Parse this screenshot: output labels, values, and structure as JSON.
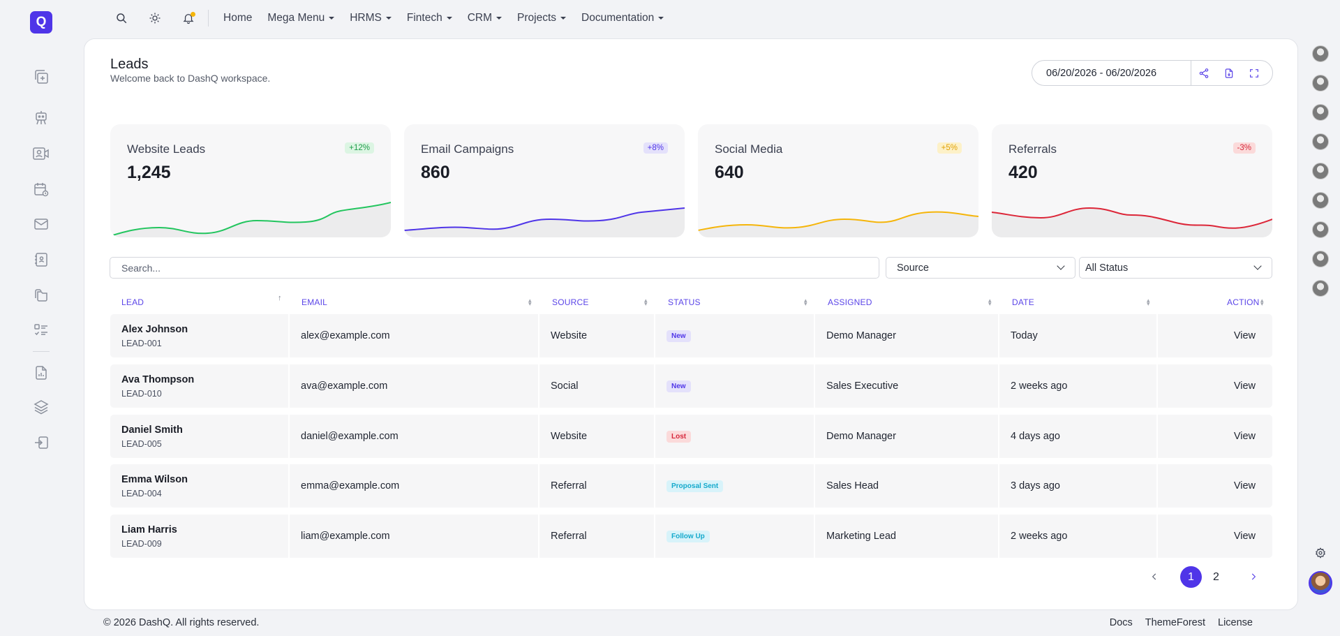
{
  "brand": {
    "logo_letter": "Q"
  },
  "sidebar": {
    "icons": [
      "copy-plus-icon",
      "robot-icon",
      "video-contact-icon",
      "calendar-clock-icon",
      "mail-icon",
      "contact-book-icon",
      "folders-icon",
      "list-check-icon",
      "document-chart-icon",
      "layers-icon",
      "logout-icon"
    ]
  },
  "topnav": {
    "items": [
      {
        "label": "Home",
        "dropdown": false
      },
      {
        "label": "Mega Menu",
        "dropdown": true
      },
      {
        "label": "HRMS",
        "dropdown": true
      },
      {
        "label": "Fintech",
        "dropdown": true
      },
      {
        "label": "CRM",
        "dropdown": true
      },
      {
        "label": "Projects",
        "dropdown": true
      },
      {
        "label": "Documentation",
        "dropdown": true
      }
    ]
  },
  "header": {
    "title": "Leads",
    "subtitle": "Welcome back to DashQ workspace.",
    "date_range": "06/20/2026 - 06/20/2026"
  },
  "stats": [
    {
      "label": "Website Leads",
      "value": "1,245",
      "change": "+12%",
      "color": "#22c55e",
      "badge_bg": "#dcf5e3",
      "badge_fg": "#1f9d4a"
    },
    {
      "label": "Email Campaigns",
      "value": "860",
      "change": "+8%",
      "color": "#4f35e8",
      "badge_bg": "#e4e1fb",
      "badge_fg": "#4f35e8"
    },
    {
      "label": "Social Media",
      "value": "640",
      "change": "+5%",
      "color": "#f5b50a",
      "badge_bg": "#fdf1c8",
      "badge_fg": "#e0a106"
    },
    {
      "label": "Referrals",
      "value": "420",
      "change": "-3%",
      "color": "#dc2638",
      "badge_bg": "#fbdada",
      "badge_fg": "#d6273b"
    }
  ],
  "filters": {
    "search_placeholder": "Search...",
    "source_label": "Source",
    "status_label": "All Status"
  },
  "table": {
    "columns": [
      "LEAD",
      "EMAIL",
      "SOURCE",
      "STATUS",
      "ASSIGNED",
      "DATE",
      "ACTION"
    ],
    "rows": [
      {
        "name": "Alex Johnson",
        "id": "LEAD-001",
        "email": "alex@example.com",
        "source": "Website",
        "status": "New",
        "status_kind": "new",
        "assigned": "Demo Manager",
        "date": "Today",
        "action": "View"
      },
      {
        "name": "Ava Thompson",
        "id": "LEAD-010",
        "email": "ava@example.com",
        "source": "Social",
        "status": "New",
        "status_kind": "new",
        "assigned": "Sales Executive",
        "date": "2 weeks ago",
        "action": "View"
      },
      {
        "name": "Daniel Smith",
        "id": "LEAD-005",
        "email": "daniel@example.com",
        "source": "Website",
        "status": "Lost",
        "status_kind": "lost",
        "assigned": "Demo Manager",
        "date": "4 days ago",
        "action": "View"
      },
      {
        "name": "Emma Wilson",
        "id": "LEAD-004",
        "email": "emma@example.com",
        "source": "Referral",
        "status": "Proposal Sent",
        "status_kind": "proposal",
        "assigned": "Sales Head",
        "date": "3 days ago",
        "action": "View"
      },
      {
        "name": "Liam Harris",
        "id": "LEAD-009",
        "email": "liam@example.com",
        "source": "Referral",
        "status": "Follow Up",
        "status_kind": "follow",
        "assigned": "Marketing Lead",
        "date": "2 weeks ago",
        "action": "View"
      }
    ]
  },
  "pagination": {
    "pages": [
      "1",
      "2"
    ],
    "current": "1"
  },
  "footer": {
    "copyright": "© 2026 DashQ. All rights reserved.",
    "links": [
      "Docs",
      "ThemeForest",
      "License"
    ]
  }
}
